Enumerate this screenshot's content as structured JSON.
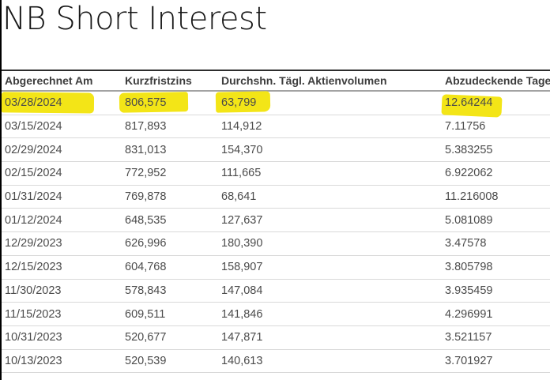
{
  "page": {
    "title": "NB Short Interest"
  },
  "colors": {
    "highlight": "#f3e517",
    "table_top_border": "#2d2d2d",
    "row_separator": "#d9d9d9"
  },
  "table": {
    "columns": [
      "Abgerechnet Am",
      "Kurzfristzins",
      "Durchshn. Tägl. Aktienvolumen",
      "Abzudeckende Tage"
    ],
    "highlighted_row_index": 0,
    "rows": [
      [
        "03/28/2024",
        "806,575",
        "63,799",
        "12.64244"
      ],
      [
        "03/15/2024",
        "817,893",
        "114,912",
        "7.11756"
      ],
      [
        "02/29/2024",
        "831,013",
        "154,370",
        "5.383255"
      ],
      [
        "02/15/2024",
        "772,952",
        "111,665",
        "6.922062"
      ],
      [
        "01/31/2024",
        "769,878",
        "68,641",
        "11.216008"
      ],
      [
        "01/12/2024",
        "648,535",
        "127,637",
        "5.081089"
      ],
      [
        "12/29/2023",
        "626,996",
        "180,390",
        "3.47578"
      ],
      [
        "12/15/2023",
        "604,768",
        "158,907",
        "3.805798"
      ],
      [
        "11/30/2023",
        "578,843",
        "147,084",
        "3.935459"
      ],
      [
        "11/15/2023",
        "609,511",
        "141,846",
        "4.296991"
      ],
      [
        "10/31/2023",
        "520,677",
        "147,871",
        "3.521157"
      ],
      [
        "10/13/2023",
        "520,539",
        "140,613",
        "3.701927"
      ]
    ]
  }
}
